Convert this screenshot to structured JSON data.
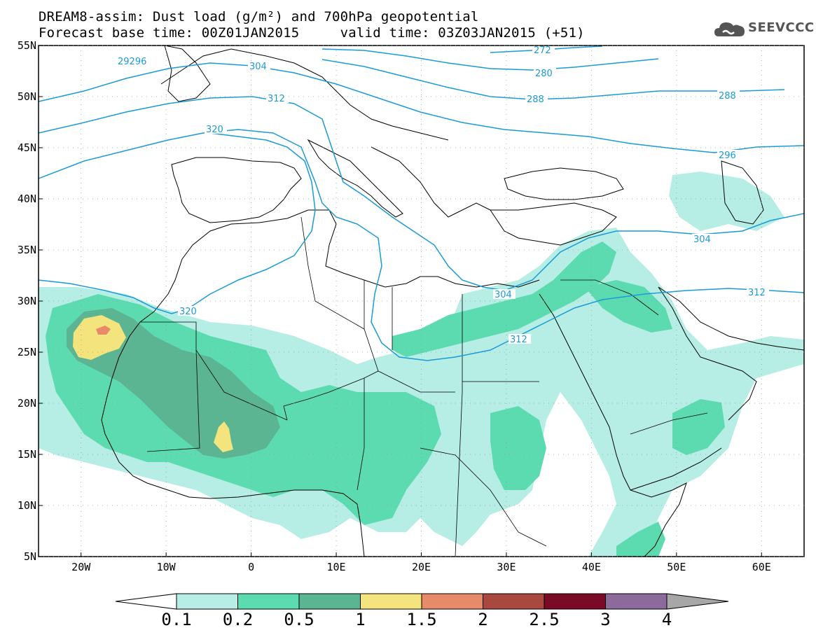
{
  "title": {
    "line1": "DREAM8-assim: Dust load (g/m²) and 700hPa geopotential",
    "line2": "Forecast base time: 00Z01JAN2015     valid time: 03Z03JAN2015 (+51)"
  },
  "logo": {
    "text": "SEEVCCC",
    "icon": "cloud-icon"
  },
  "axes": {
    "lon_labels": [
      "20W",
      "10W",
      "0",
      "10E",
      "20E",
      "30E",
      "40E",
      "50E",
      "60E"
    ],
    "lat_labels": [
      "55N",
      "50N",
      "45N",
      "40N",
      "35N",
      "30N",
      "25N",
      "20N",
      "15N",
      "10N",
      "5N"
    ],
    "lon_range": [
      -25,
      65
    ],
    "lat_range": [
      5,
      55
    ]
  },
  "contour_labels": [
    "272",
    "280",
    "288",
    "288",
    "29296",
    "296",
    "304",
    "304",
    "304",
    "312",
    "312",
    "312",
    "320",
    "320"
  ],
  "colorbar": {
    "ticks": [
      "0.1",
      "0.2",
      "0.5",
      "1",
      "1.5",
      "2",
      "2.5",
      "3",
      "4"
    ],
    "colors": [
      "#ffffff",
      "#b6ede4",
      "#5ddbb0",
      "#5cb592",
      "#f3e47d",
      "#e68a6a",
      "#a8483e",
      "#7a0a25",
      "#8c6a9c",
      "#a7a7a7"
    ]
  }
}
